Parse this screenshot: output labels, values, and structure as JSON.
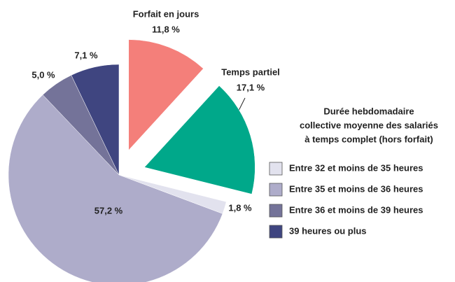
{
  "chart_data": {
    "type": "pie",
    "categories": [
      "Forfait en jours",
      "Temps partiel",
      "Entre 32 et moins de 35 heures",
      "Entre 35 et moins de 36 heures",
      "Entre 36 et moins de 39 heures",
      "39 heures ou plus"
    ],
    "values": [
      11.8,
      17.1,
      1.8,
      57.2,
      5.0,
      7.1
    ],
    "value_labels": [
      "11,8 %",
      "17,1 %",
      "1,8 %",
      "57,2 %",
      "5,0 %",
      "7,1 %"
    ],
    "colors": [
      "#f47f7a",
      "#00a88a",
      "#e2e2ee",
      "#aeacca",
      "#747399",
      "#3f4580"
    ],
    "explode": [
      true,
      true,
      false,
      false,
      false,
      false
    ],
    "legend_title": [
      "Durée hebdomadaire",
      "collective moyenne des salariés",
      "à temps complet (hors forfait)"
    ]
  }
}
